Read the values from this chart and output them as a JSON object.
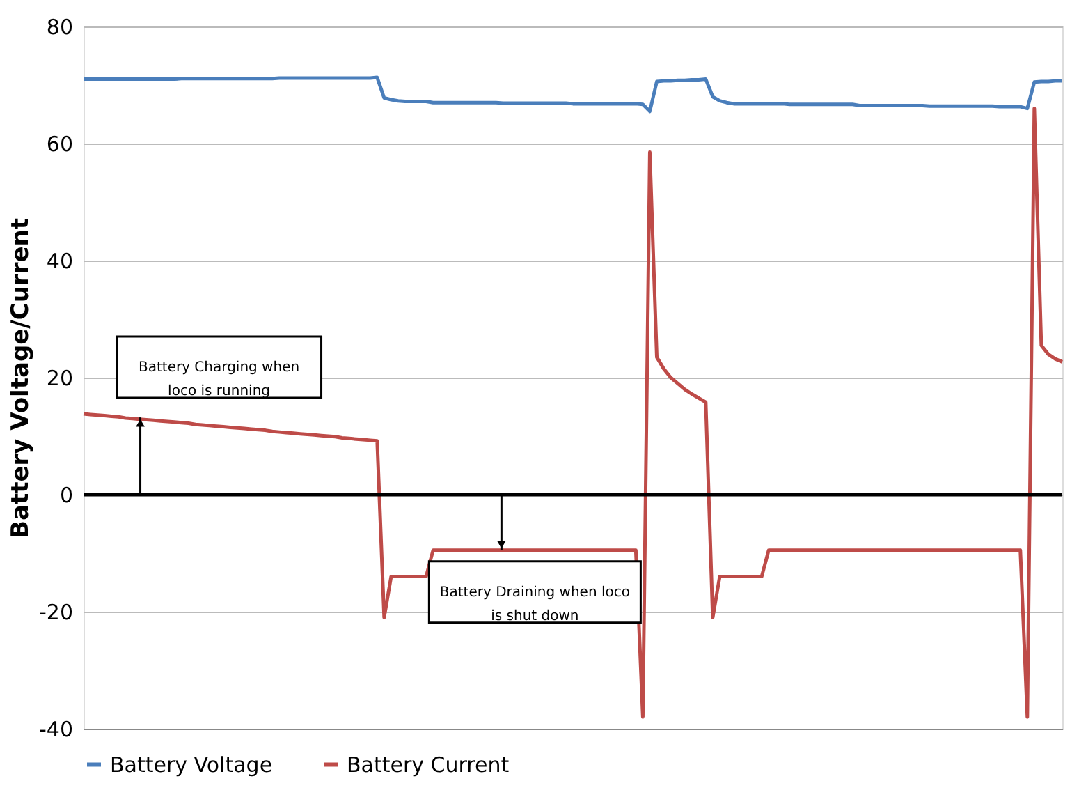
{
  "chart_data": {
    "type": "line",
    "ylabel": "Battery Voltage/Current",
    "ylim": [
      -40,
      80
    ],
    "yticks": [
      -40,
      -20,
      0,
      20,
      40,
      60,
      80
    ],
    "grid": "y",
    "legend": "bottom",
    "categories": [
      null,
      null,
      null,
      null,
      null,
      null,
      null,
      null,
      null,
      null,
      null,
      null,
      null,
      null,
      null,
      null,
      null,
      null,
      null,
      null,
      null,
      null,
      null,
      null,
      null,
      null,
      null,
      null,
      null,
      null,
      null,
      null,
      null,
      null,
      null,
      null,
      null,
      null,
      null,
      null,
      null,
      null,
      null,
      null,
      null,
      null,
      null,
      null,
      null,
      null,
      null,
      null,
      null,
      null,
      null,
      null,
      null,
      null,
      null,
      null,
      null,
      null,
      null,
      null,
      null,
      null,
      null,
      null,
      null,
      null,
      null,
      null,
      null,
      null,
      null,
      null,
      null,
      null,
      null,
      null,
      null,
      null,
      null,
      null,
      null,
      null,
      null,
      null,
      null,
      null,
      null,
      null,
      null,
      null,
      null,
      null,
      null,
      null,
      null,
      null,
      null,
      null,
      null,
      null,
      null,
      null,
      null,
      null,
      null,
      null,
      null,
      null,
      null,
      null,
      null,
      null,
      null,
      null,
      null,
      null,
      null,
      null,
      null,
      null,
      null,
      null,
      null,
      null,
      null,
      null,
      null,
      null,
      null,
      null,
      null,
      null,
      null,
      null,
      null,
      null,
      null
    ],
    "series": [
      {
        "name": "Battery Voltage",
        "color": "#4a7ebb",
        "values": [
          71.0,
          71.0,
          71.0,
          71.0,
          71.0,
          71.0,
          71.0,
          71.0,
          71.0,
          71.0,
          71.0,
          71.0,
          71.0,
          71.0,
          71.1,
          71.1,
          71.1,
          71.1,
          71.1,
          71.1,
          71.1,
          71.1,
          71.1,
          71.1,
          71.1,
          71.1,
          71.1,
          71.1,
          71.2,
          71.2,
          71.2,
          71.2,
          71.2,
          71.2,
          71.2,
          71.2,
          71.2,
          71.2,
          71.2,
          71.2,
          71.2,
          71.2,
          71.3,
          67.8,
          67.5,
          67.3,
          67.2,
          67.2,
          67.2,
          67.2,
          67.0,
          67.0,
          67.0,
          67.0,
          67.0,
          67.0,
          67.0,
          67.0,
          67.0,
          67.0,
          66.9,
          66.9,
          66.9,
          66.9,
          66.9,
          66.9,
          66.9,
          66.9,
          66.9,
          66.9,
          66.8,
          66.8,
          66.8,
          66.8,
          66.8,
          66.8,
          66.8,
          66.8,
          66.8,
          66.8,
          66.7,
          65.5,
          70.6,
          70.7,
          70.7,
          70.8,
          70.8,
          70.9,
          70.9,
          71.0,
          68.0,
          67.3,
          67.0,
          66.8,
          66.8,
          66.8,
          66.8,
          66.8,
          66.8,
          66.8,
          66.8,
          66.7,
          66.7,
          66.7,
          66.7,
          66.7,
          66.7,
          66.7,
          66.7,
          66.7,
          66.7,
          66.5,
          66.5,
          66.5,
          66.5,
          66.5,
          66.5,
          66.5,
          66.5,
          66.5,
          66.5,
          66.4,
          66.4,
          66.4,
          66.4,
          66.4,
          66.4,
          66.4,
          66.4,
          66.4,
          66.4,
          66.3,
          66.3,
          66.3,
          66.3,
          66.0,
          70.5,
          70.6,
          70.6,
          70.7,
          70.7
        ]
      },
      {
        "name": "Battery Current",
        "color": "#be4b48",
        "values": [
          13.8,
          13.7,
          13.6,
          13.5,
          13.4,
          13.3,
          13.1,
          13.0,
          12.9,
          12.8,
          12.7,
          12.6,
          12.5,
          12.4,
          12.3,
          12.2,
          12.0,
          11.9,
          11.8,
          11.7,
          11.6,
          11.5,
          11.4,
          11.3,
          11.2,
          11.1,
          11.0,
          10.8,
          10.7,
          10.6,
          10.5,
          10.4,
          10.3,
          10.2,
          10.1,
          10.0,
          9.9,
          9.7,
          9.6,
          9.5,
          9.4,
          9.3,
          9.2,
          -21,
          -14,
          -14,
          -14,
          -14,
          -14,
          -14,
          -9.5,
          -9.5,
          -9.5,
          -9.5,
          -9.5,
          -9.5,
          -9.5,
          -9.5,
          -9.5,
          -9.5,
          -9.5,
          -9.5,
          -9.5,
          -9.5,
          -9.5,
          -9.5,
          -9.5,
          -9.5,
          -9.5,
          -9.5,
          -9.5,
          -9.5,
          -9.5,
          -9.5,
          -9.5,
          -9.5,
          -9.5,
          -9.5,
          -9.5,
          -9.5,
          -38,
          58.5,
          23.5,
          21.5,
          20.0,
          19.0,
          18.0,
          17.2,
          16.5,
          15.8,
          -21,
          -14,
          -14,
          -14,
          -14,
          -14,
          -14,
          -14,
          -9.5,
          -9.5,
          -9.5,
          -9.5,
          -9.5,
          -9.5,
          -9.5,
          -9.5,
          -9.5,
          -9.5,
          -9.5,
          -9.5,
          -9.5,
          -9.5,
          -9.5,
          -9.5,
          -9.5,
          -9.5,
          -9.5,
          -9.5,
          -9.5,
          -9.5,
          -9.5,
          -9.5,
          -9.5,
          -9.5,
          -9.5,
          -9.5,
          -9.5,
          -9.5,
          -9.5,
          -9.5,
          -9.5,
          -9.5,
          -9.5,
          -9.5,
          -9.5,
          -38,
          66,
          25.5,
          24.0,
          23.2,
          22.7
        ]
      }
    ],
    "ref_lines": [
      {
        "axis": "y",
        "value": 0,
        "color": "#000000"
      }
    ],
    "annotations": [
      {
        "text": "Battery Charging when loco is running",
        "y": 13.2
      },
      {
        "text": "Battery Draining when loco is shut down",
        "y": -9.5
      }
    ]
  }
}
